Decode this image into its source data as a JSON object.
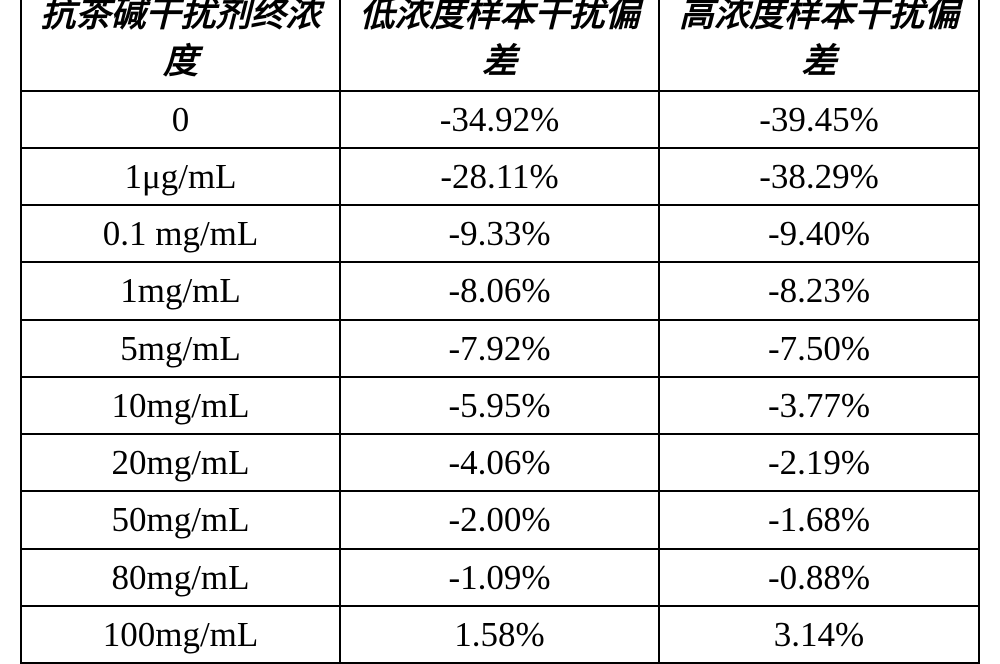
{
  "table": {
    "columns": [
      "抗茶碱干扰剂终浓度",
      "低浓度样本干扰偏差",
      "高浓度样本干扰偏差"
    ],
    "rows": [
      [
        "0",
        "-34.92%",
        "-39.45%"
      ],
      [
        "1μg/mL",
        "-28.11%",
        "-38.29%"
      ],
      [
        "0.1 mg/mL",
        "-9.33%",
        "-9.40%"
      ],
      [
        "1mg/mL",
        "-8.06%",
        "-8.23%"
      ],
      [
        "5mg/mL",
        "-7.92%",
        "-7.50%"
      ],
      [
        "10mg/mL",
        "-5.95%",
        "-3.77%"
      ],
      [
        "20mg/mL",
        "-4.06%",
        "-2.19%"
      ],
      [
        "50mg/mL",
        "-2.00%",
        "-1.68%"
      ],
      [
        "80mg/mL",
        "-1.09%",
        "-0.88%"
      ],
      [
        "100mg/mL",
        "1.58%",
        "3.14%"
      ]
    ],
    "border_color": "#000000",
    "background_color": "#ffffff",
    "header_fontsize": 35,
    "cell_fontsize": 35,
    "header_fontweight": "bold",
    "header_fontstyle": "italic"
  }
}
